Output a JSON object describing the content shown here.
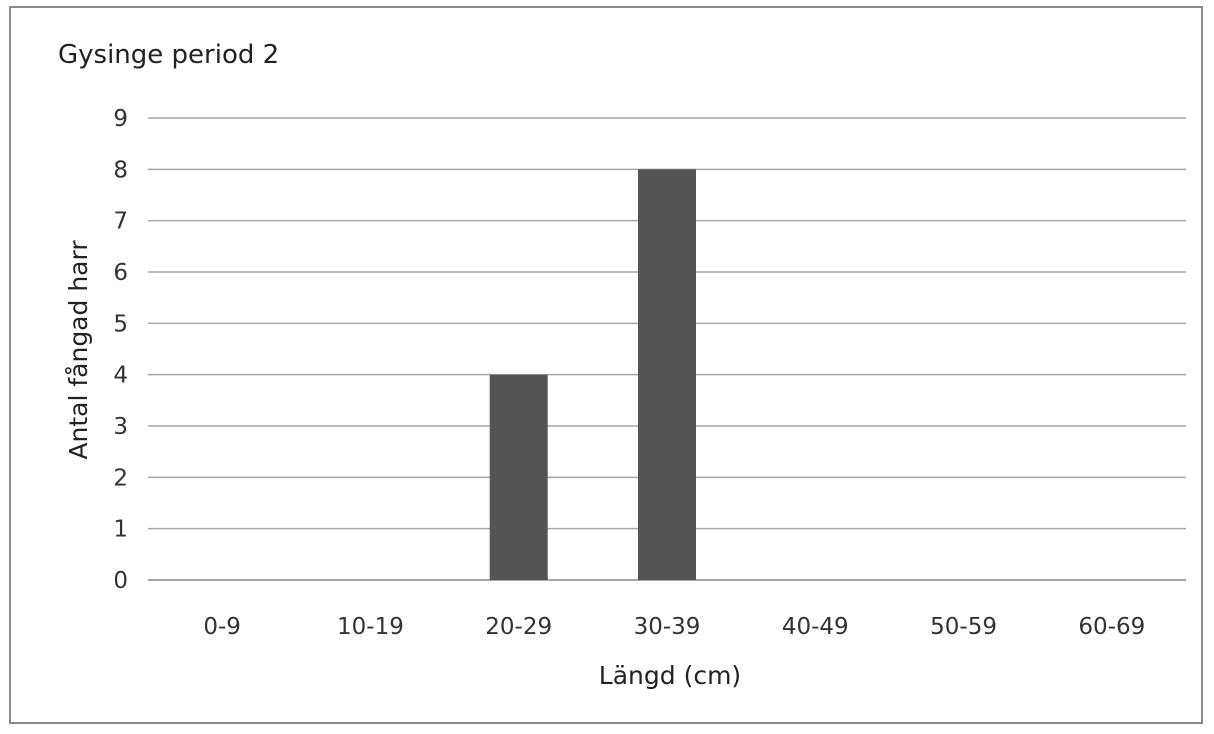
{
  "chart_data": {
    "type": "bar",
    "title": "Gysinge period 2",
    "xlabel": "Längd (cm)",
    "ylabel": "Antal fångad harr",
    "categories": [
      "0-9",
      "10-19",
      "20-29",
      "30-39",
      "40-49",
      "50-59",
      "60-69"
    ],
    "values": [
      0,
      0,
      4,
      8,
      0,
      0,
      0
    ],
    "ylim": [
      0,
      9
    ],
    "yticks": [
      "0",
      "1",
      "2",
      "3",
      "4",
      "5",
      "6",
      "7",
      "8",
      "9"
    ],
    "grid": true,
    "legend": "none",
    "bar_color": "#555555",
    "grid_color": "#a6a6a6"
  }
}
